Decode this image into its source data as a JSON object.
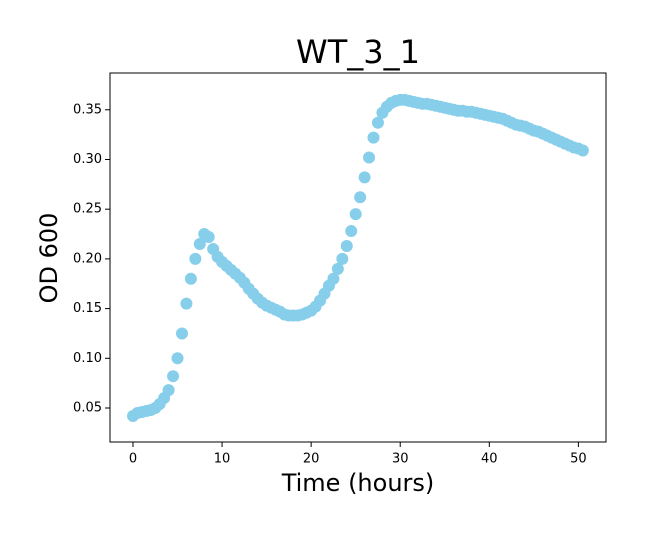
{
  "chart_data": {
    "type": "scatter",
    "title": "WT_3_1",
    "x_label": "Time (hours)",
    "y_label": "OD 600",
    "color": "#87ceeb",
    "grid": false,
    "x": [
      0,
      0.5,
      1,
      1.5,
      2,
      2.5,
      3,
      3.5,
      4,
      4.5,
      5,
      5.5,
      6,
      6.5,
      7,
      7.5,
      8,
      8.5,
      9,
      9.5,
      10,
      10.5,
      11,
      11.5,
      12,
      12.5,
      13,
      13.5,
      14,
      14.5,
      15,
      15.5,
      16,
      16.5,
      17,
      17.5,
      18,
      18.5,
      19,
      19.5,
      20,
      20.5,
      21,
      21.5,
      22,
      22.5,
      23,
      23.5,
      24,
      24.5,
      25,
      25.5,
      26,
      26.5,
      27,
      27.5,
      28,
      28.5,
      29,
      29.5,
      30,
      30.5,
      31,
      31.5,
      32,
      32.5,
      33,
      33.5,
      34,
      34.5,
      35,
      35.5,
      36,
      36.5,
      37,
      37.5,
      38,
      38.5,
      39,
      39.5,
      40,
      40.5,
      41,
      41.5,
      42,
      42.5,
      43,
      43.5,
      44,
      44.5,
      45,
      45.5,
      46,
      46.5,
      47,
      47.5,
      48,
      48.5,
      49,
      49.5,
      50,
      50.5
    ],
    "values": [
      0.042,
      0.045,
      0.046,
      0.047,
      0.048,
      0.05,
      0.054,
      0.06,
      0.068,
      0.082,
      0.1,
      0.125,
      0.155,
      0.18,
      0.2,
      0.215,
      0.225,
      0.222,
      0.21,
      0.202,
      0.197,
      0.193,
      0.189,
      0.185,
      0.181,
      0.176,
      0.17,
      0.165,
      0.16,
      0.156,
      0.153,
      0.151,
      0.149,
      0.147,
      0.144,
      0.143,
      0.143,
      0.143,
      0.144,
      0.146,
      0.148,
      0.152,
      0.158,
      0.165,
      0.173,
      0.18,
      0.19,
      0.2,
      0.213,
      0.228,
      0.245,
      0.262,
      0.282,
      0.302,
      0.322,
      0.337,
      0.347,
      0.353,
      0.357,
      0.359,
      0.36,
      0.36,
      0.359,
      0.358,
      0.357,
      0.356,
      0.356,
      0.355,
      0.354,
      0.353,
      0.352,
      0.351,
      0.35,
      0.349,
      0.349,
      0.348,
      0.348,
      0.347,
      0.346,
      0.345,
      0.344,
      0.343,
      0.342,
      0.341,
      0.339,
      0.337,
      0.335,
      0.334,
      0.333,
      0.331,
      0.329,
      0.328,
      0.326,
      0.324,
      0.322,
      0.32,
      0.318,
      0.316,
      0.314,
      0.312,
      0.311,
      0.309
    ],
    "xlim": [
      -2.58,
      53.1
    ],
    "ylim": [
      0.0158,
      0.387
    ],
    "xticks": [
      0,
      10,
      20,
      30,
      40,
      50
    ],
    "yticks": [
      0.05,
      {
        "value": 0.1,
        "label": "0.10"
      },
      0.15,
      {
        "value": 0.2,
        "label": "0.20"
      },
      0.25,
      {
        "value": 0.3,
        "label": "0.30"
      },
      0.35
    ]
  }
}
